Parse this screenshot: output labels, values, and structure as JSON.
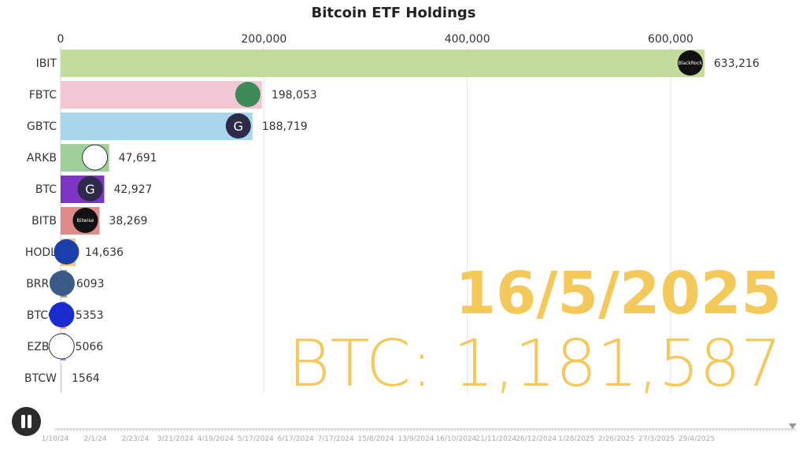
{
  "chart_data": {
    "type": "bar",
    "orientation": "horizontal",
    "title": "Bitcoin ETF Holdings",
    "xlim": [
      0,
      700000
    ],
    "xticks": [
      0,
      200000,
      400000,
      600000
    ],
    "xtick_labels": [
      "0",
      "200,000",
      "400,000",
      "600,000"
    ],
    "grid": true,
    "categories": [
      "IBIT",
      "FBTC",
      "GBTC",
      "ARKB",
      "BTC",
      "BITB",
      "HODL",
      "BRRR",
      "BTCO",
      "EZBC",
      "BTCW"
    ],
    "values": [
      633216,
      198053,
      188719,
      47691,
      42927,
      38269,
      14636,
      6093,
      5353,
      5066,
      1564
    ],
    "value_labels": [
      "633,216",
      "198,053",
      "188,719",
      "47,691",
      "42,927",
      "38,269",
      "14,636",
      "6093",
      "5353",
      "5066",
      "1564"
    ],
    "colors": [
      "#c3dc9c",
      "#f2c6d4",
      "#a9d6ef",
      "#9fd09a",
      "#7f35c4",
      "#e08a8a",
      "#f6c77a",
      "#a89a94",
      "#f4a184",
      "#c184d6",
      "#dddddd"
    ],
    "logo_colors": [
      "#111111",
      "#3c8a55",
      "#2e2a4a",
      "#ffffff",
      "#2e2a4a",
      "#111111",
      "#1a3fa8",
      "#3a5a8a",
      "#1a2bd0",
      "#ffffff",
      null
    ],
    "logo_text": [
      "BlackRock",
      "",
      "G",
      "",
      "G",
      "Bitwise",
      "",
      "",
      "",
      "",
      ""
    ]
  },
  "overlay": {
    "date": "16/5/2025",
    "total": "BTC: 1,181,587",
    "color": "#f3c95c"
  },
  "timeline": {
    "labels": [
      "1/10/24",
      "2/1/24",
      "2/23/24",
      "3/21/2024",
      "4/19/2024",
      "5/17/2024",
      "6/17/2024",
      "7/17/2024",
      "15/8/2024",
      "13/9/2024",
      "16/10/2024",
      "21/11/2024",
      "26/12/2024",
      "1/28/2025",
      "2/26/2025",
      "27/3/2025",
      "29/4/2025"
    ],
    "progress": 1.0
  },
  "controls": {
    "pause_label": "Pause"
  }
}
